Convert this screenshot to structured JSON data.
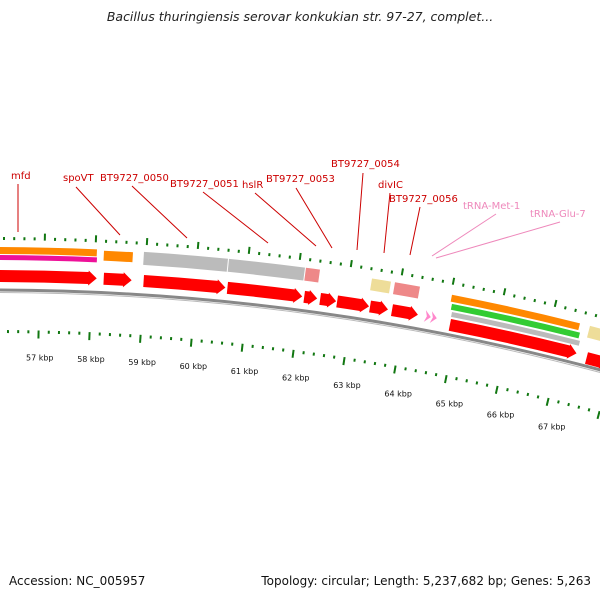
{
  "title": "Bacillus thuringiensis serovar konkukian str. 97-27, complet...",
  "footer": {
    "accession": "Accession: NC_005957",
    "summary": "Topology: circular; Length: 5,237,682 bp; Genes: 5,263"
  },
  "kbp_labels": [
    "57 kbp",
    "58 kbp",
    "59 kbp",
    "60 kbp",
    "61 kbp",
    "62 kbp",
    "63 kbp",
    "64 kbp",
    "65 kbp",
    "66 kbp",
    "67 kbp"
  ],
  "gene_labels": [
    {
      "text": "mfd",
      "color": "#cc0000"
    },
    {
      "text": "spoVT",
      "color": "#cc0000"
    },
    {
      "text": "BT9727_0050",
      "color": "#cc0000"
    },
    {
      "text": "BT9727_0051",
      "color": "#cc0000"
    },
    {
      "text": "hslR",
      "color": "#cc0000"
    },
    {
      "text": "BT9727_0053",
      "color": "#cc0000"
    },
    {
      "text": "BT9727_0054",
      "color": "#cc0000"
    },
    {
      "text": "divIC",
      "color": "#cc0000"
    },
    {
      "text": "BT9727_0056",
      "color": "#cc0000"
    },
    {
      "text": "tRNA-Met-1",
      "color": "#ee88bb"
    },
    {
      "text": "tRNA-Glu-7",
      "color": "#ee88bb"
    }
  ],
  "colors": {
    "cds": "#ff0000",
    "trna": "#ff88cc",
    "tick": "#117711",
    "backbone": "#888888",
    "gray": "#bbbbbb",
    "orange": "#ff8800",
    "yellow": "#eedd99",
    "pink": "#ee8888",
    "green": "#33cc33",
    "magenta": "#ee1199"
  }
}
